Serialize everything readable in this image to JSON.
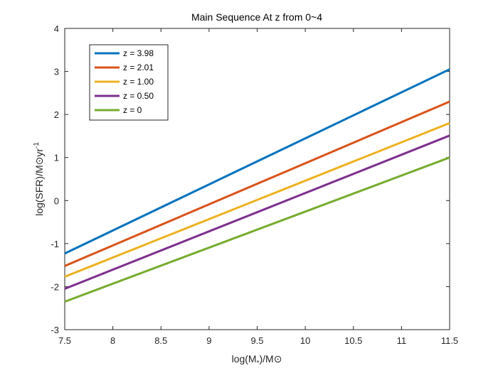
{
  "chart_data": {
    "type": "line",
    "title": "Main Sequence At z from 0~4",
    "xlabel": {
      "base": "log(M",
      "sub": "*",
      "tail": ")/M⊙"
    },
    "ylabel": {
      "base": "log(SFR)/M⊙yr",
      "sup": "-1"
    },
    "xlim": [
      7.5,
      11.5
    ],
    "ylim": [
      -3,
      4
    ],
    "xticks": [
      "7.5",
      "8",
      "8.5",
      "9",
      "9.5",
      "10",
      "10.5",
      "11",
      "11.5"
    ],
    "yticks": [
      "-3",
      "-2",
      "-1",
      "0",
      "1",
      "2",
      "3",
      "4"
    ],
    "grid": false,
    "legend_position": "top-left",
    "series": [
      {
        "name": "z = 3.98",
        "color": "#0072BD",
        "x": [
          7.5,
          11.5
        ],
        "y": [
          -1.23,
          3.05
        ]
      },
      {
        "name": "z = 2.01",
        "color": "#D95319",
        "x": [
          7.5,
          11.5
        ],
        "y": [
          -1.52,
          2.3
        ]
      },
      {
        "name": "z = 1.00",
        "color": "#EDB120",
        "x": [
          7.5,
          11.5
        ],
        "y": [
          -1.77,
          1.8
        ]
      },
      {
        "name": "z = 0.50",
        "color": "#7E2F8E",
        "x": [
          7.5,
          11.5
        ],
        "y": [
          -2.05,
          1.51
        ]
      },
      {
        "name": "z = 0",
        "color": "#77AC30",
        "x": [
          7.5,
          11.5
        ],
        "y": [
          -2.35,
          1.0
        ]
      }
    ]
  }
}
